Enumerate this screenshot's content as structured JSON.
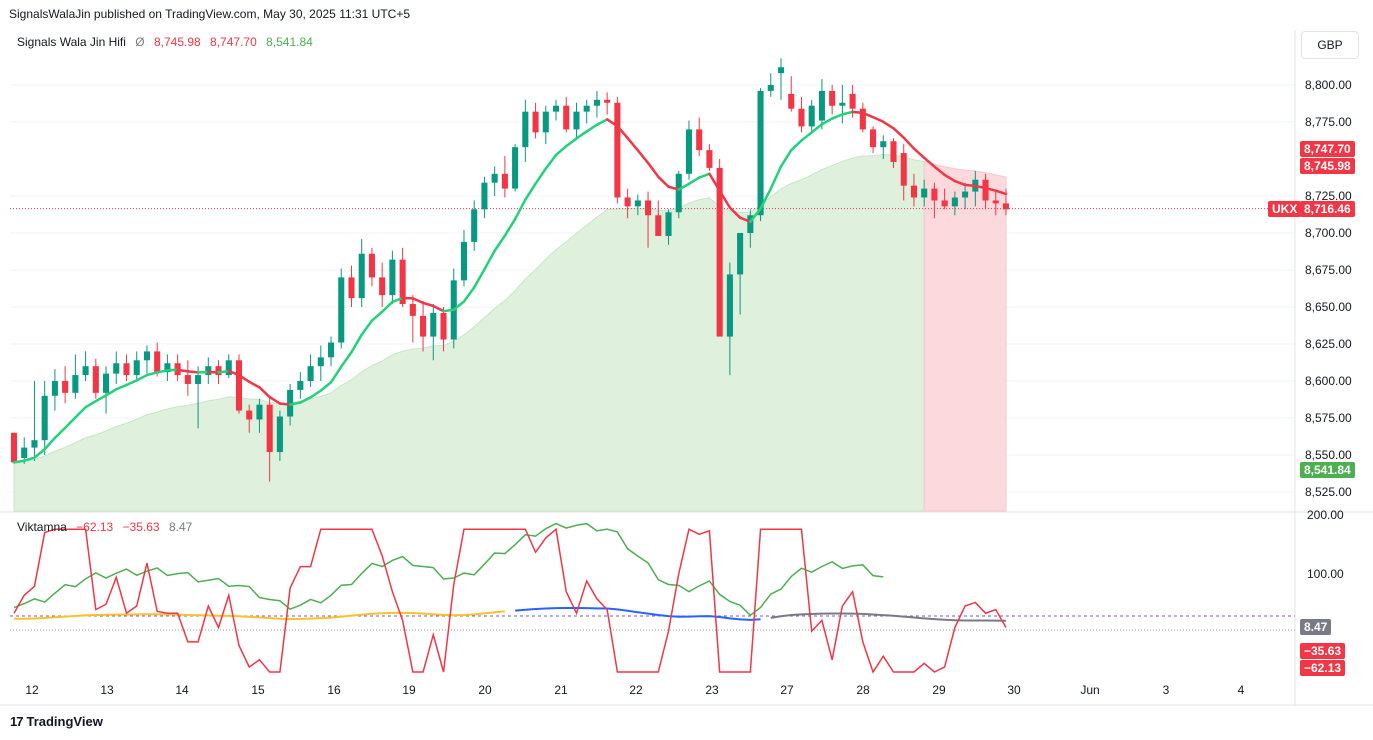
{
  "header": {
    "published": "SignalsWalaJin published on TradingView.com, May 30, 2025 11:31 UTC+5"
  },
  "legend": {
    "name": "Signals Wala Jin Hifi",
    "symbol": "Ø",
    "v1": "8,745.98",
    "v2": "8,747.70",
    "v3": "8,541.84"
  },
  "currency": "GBP",
  "colors": {
    "up": "#089981",
    "down": "#f23645",
    "fast": "#22d27a",
    "slow": "#f23645",
    "band_up": "#dff0dc",
    "band_down": "#fbd9dc",
    "osc_green": "#4caf50",
    "osc_red": "#f23645",
    "osc_blue": "#2962ff",
    "osc_yellow": "#fbc02d",
    "osc_grey": "#787b86"
  },
  "price_axis": {
    "ticks": [
      "8,800.00",
      "8,775.00",
      "8,725.00",
      "8,700.00",
      "8,675.00",
      "8,650.00",
      "8,625.00",
      "8,600.00",
      "8,575.00",
      "8,550.00",
      "8,525.00"
    ],
    "tick_values": [
      8800,
      8775,
      8725,
      8700,
      8675,
      8650,
      8625,
      8600,
      8575,
      8550,
      8525
    ]
  },
  "price_tags": [
    {
      "label": "8,747.70",
      "value": 8747.7,
      "color": "#f23645"
    },
    {
      "label": "8,745.98",
      "value": 8745.98,
      "color": "#f23645"
    },
    {
      "label": "8,716.46",
      "value": 8716.46,
      "color": "#f23645",
      "symbol": "UKX"
    },
    {
      "label": "8,541.84",
      "value": 8541.84,
      "color": "#4caf50"
    }
  ],
  "osc_legend": {
    "name": "Viktamna",
    "v1": "−62.13",
    "v2": "−35.63",
    "v3": "8.47"
  },
  "osc_axis": {
    "ticks": [
      "200.00",
      "100.00"
    ],
    "tick_values": [
      200,
      100
    ]
  },
  "osc_tags": [
    {
      "label": "8.47",
      "value": 8.47,
      "color": "#787b86"
    },
    {
      "label": "−35.63",
      "value": -35.63,
      "color": "#f23645"
    },
    {
      "label": "−62.13",
      "value": -62.13,
      "color": "#f23645"
    }
  ],
  "time_axis": {
    "labels": [
      "12",
      "13",
      "14",
      "15",
      "16",
      "19",
      "20",
      "21",
      "22",
      "23",
      "27",
      "28",
      "29",
      "30",
      "Jun",
      "3",
      "4"
    ]
  },
  "brand": "TradingView",
  "chart_data": {
    "type": "candlestick",
    "title": "Signals Wala Jin Hifi",
    "symbol": "UKX",
    "ylim": [
      8510,
      8830
    ],
    "x_labels": [
      "12",
      "13",
      "14",
      "15",
      "16",
      "19",
      "20",
      "21",
      "22",
      "23",
      "27",
      "28",
      "29",
      "30",
      "Jun",
      "3",
      "4"
    ],
    "candles": [
      [
        8565,
        8565,
        8545,
        8545
      ],
      [
        8548,
        8562,
        8544,
        8555
      ],
      [
        8555,
        8600,
        8546,
        8560
      ],
      [
        8560,
        8600,
        8550,
        8590
      ],
      [
        8590,
        8608,
        8580,
        8600
      ],
      [
        8600,
        8610,
        8585,
        8592
      ],
      [
        8592,
        8618,
        8588,
        8604
      ],
      [
        8604,
        8620,
        8600,
        8610
      ],
      [
        8610,
        8615,
        8588,
        8592
      ],
      [
        8592,
        8610,
        8578,
        8605
      ],
      [
        8605,
        8620,
        8598,
        8612
      ],
      [
        8612,
        8618,
        8600,
        8604
      ],
      [
        8604,
        8620,
        8600,
        8614
      ],
      [
        8614,
        8624,
        8605,
        8620
      ],
      [
        8620,
        8626,
        8603,
        8606
      ],
      [
        8606,
        8618,
        8600,
        8612
      ],
      [
        8612,
        8618,
        8600,
        8604
      ],
      [
        8604,
        8614,
        8590,
        8598
      ],
      [
        8598,
        8610,
        8568,
        8604
      ],
      [
        8604,
        8616,
        8598,
        8610
      ],
      [
        8610,
        8614,
        8598,
        8604
      ],
      [
        8604,
        8618,
        8602,
        8614
      ],
      [
        8614,
        8618,
        8578,
        8580
      ],
      [
        8580,
        8584,
        8565,
        8574
      ],
      [
        8574,
        8588,
        8565,
        8584
      ],
      [
        8584,
        8590,
        8532,
        8552
      ],
      [
        8552,
        8580,
        8546,
        8576
      ],
      [
        8576,
        8598,
        8570,
        8594
      ],
      [
        8594,
        8606,
        8588,
        8600
      ],
      [
        8600,
        8618,
        8596,
        8610
      ],
      [
        8610,
        8624,
        8600,
        8616
      ],
      [
        8616,
        8630,
        8610,
        8626
      ],
      [
        8626,
        8676,
        8622,
        8670
      ],
      [
        8670,
        8678,
        8650,
        8656
      ],
      [
        8656,
        8696,
        8650,
        8686
      ],
      [
        8686,
        8690,
        8664,
        8670
      ],
      [
        8670,
        8680,
        8650,
        8658
      ],
      [
        8658,
        8688,
        8652,
        8682
      ],
      [
        8682,
        8690,
        8650,
        8652
      ],
      [
        8652,
        8658,
        8626,
        8644
      ],
      [
        8644,
        8654,
        8620,
        8630
      ],
      [
        8630,
        8652,
        8614,
        8646
      ],
      [
        8646,
        8650,
        8620,
        8628
      ],
      [
        8628,
        8676,
        8622,
        8668
      ],
      [
        8668,
        8702,
        8664,
        8694
      ],
      [
        8694,
        8722,
        8688,
        8716
      ],
      [
        8716,
        8738,
        8710,
        8734
      ],
      [
        8734,
        8745,
        8725,
        8740
      ],
      [
        8740,
        8752,
        8724,
        8730
      ],
      [
        8730,
        8760,
        8728,
        8758
      ],
      [
        8758,
        8790,
        8748,
        8782
      ],
      [
        8782,
        8788,
        8764,
        8768
      ],
      [
        8768,
        8786,
        8760,
        8782
      ],
      [
        8782,
        8790,
        8776,
        8786
      ],
      [
        8786,
        8792,
        8768,
        8770
      ],
      [
        8770,
        8788,
        8764,
        8782
      ],
      [
        8782,
        8790,
        8774,
        8786
      ],
      [
        8786,
        8796,
        8778,
        8790
      ],
      [
        8790,
        8795,
        8780,
        8788
      ],
      [
        8788,
        8792,
        8720,
        8724
      ],
      [
        8724,
        8730,
        8710,
        8718
      ],
      [
        8718,
        8726,
        8712,
        8722
      ],
      [
        8722,
        8728,
        8690,
        8712
      ],
      [
        8712,
        8722,
        8700,
        8698
      ],
      [
        8698,
        8716,
        8692,
        8714
      ],
      [
        8714,
        8742,
        8710,
        8740
      ],
      [
        8740,
        8776,
        8736,
        8770
      ],
      [
        8770,
        8778,
        8752,
        8756
      ],
      [
        8756,
        8760,
        8742,
        8744
      ],
      [
        8744,
        8750,
        8632,
        8630
      ],
      [
        8630,
        8680,
        8604,
        8672
      ],
      [
        8672,
        8700,
        8645,
        8700
      ],
      [
        8700,
        8716,
        8690,
        8712
      ],
      [
        8712,
        8798,
        8708,
        8796
      ],
      [
        8796,
        8808,
        8792,
        8800
      ],
      [
        8808,
        8818,
        8790,
        8812
      ],
      [
        8794,
        8806,
        8782,
        8784
      ],
      [
        8784,
        8792,
        8768,
        8772
      ],
      [
        8772,
        8790,
        8768,
        8786
      ],
      [
        8776,
        8804,
        8770,
        8796
      ],
      [
        8796,
        8800,
        8780,
        8786
      ],
      [
        8786,
        8800,
        8774,
        8788
      ],
      [
        8794,
        8800,
        8778,
        8784
      ],
      [
        8784,
        8788,
        8768,
        8770
      ],
      [
        8770,
        8772,
        8754,
        8758
      ],
      [
        8758,
        8766,
        8750,
        8762
      ],
      [
        8762,
        8764,
        8744,
        8748
      ],
      [
        8754,
        8760,
        8722,
        8732
      ],
      [
        8732,
        8740,
        8718,
        8724
      ],
      [
        8724,
        8736,
        8718,
        8730
      ],
      [
        8730,
        8734,
        8710,
        8722
      ],
      [
        8722,
        8730,
        8716,
        8718
      ],
      [
        8718,
        8728,
        8712,
        8724
      ],
      [
        8724,
        8734,
        8716,
        8728
      ],
      [
        8728,
        8742,
        8718,
        8736
      ],
      [
        8736,
        8740,
        8716,
        8722
      ],
      [
        8722,
        8728,
        8712,
        8720
      ],
      [
        8720,
        8730,
        8712,
        8716
      ]
    ]
  }
}
